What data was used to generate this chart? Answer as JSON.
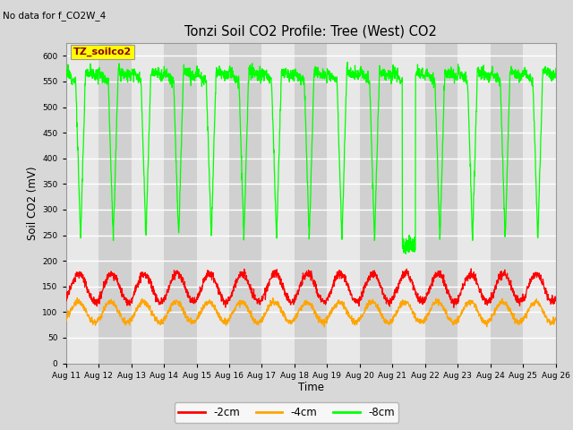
{
  "title": "Tonzi Soil CO2 Profile: Tree (West) CO2",
  "subtitle": "No data for f_CO2W_4",
  "xlabel": "Time",
  "ylabel": "Soil CO2 (mV)",
  "ylim": [
    0,
    625
  ],
  "yticks": [
    0,
    50,
    100,
    150,
    200,
    250,
    300,
    350,
    400,
    450,
    500,
    550,
    600
  ],
  "legend_labels": [
    "-2cm",
    "-4cm",
    "-8cm"
  ],
  "legend_colors": [
    "#ff0000",
    "#ffa500",
    "#00ff00"
  ],
  "line_colors": [
    "#ff0000",
    "#ffa500",
    "#00ff00"
  ],
  "annotation_text": "TZ_soilco2",
  "annotation_box_color": "#ffff00",
  "annotation_text_color": "#880000",
  "background_color": "#d8d8d8",
  "stripe1_color": "#e8e8e8",
  "stripe2_color": "#d0d0d0",
  "xtick_labels": [
    "Aug 11",
    "Aug 12",
    "Aug 13",
    "Aug 14",
    "Aug 15",
    "Aug 16",
    "Aug 17",
    "Aug 18",
    "Aug 19",
    "Aug 20",
    "Aug 21",
    "Aug 22",
    "Aug 23",
    "Aug 24",
    "Aug 25",
    "Aug 26"
  ],
  "green_peak": 570,
  "green_trough": 240,
  "red_peak": 175,
  "red_trough": 120,
  "orange_peak": 120,
  "orange_trough": 80,
  "n_days": 15
}
